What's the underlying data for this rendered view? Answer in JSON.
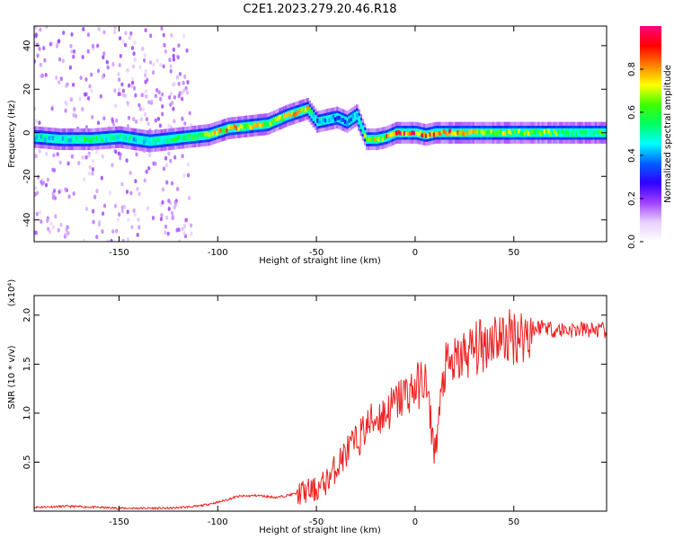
{
  "title": "C2E1.2023.279.20.46.R18",
  "colors": {
    "snr_line": "#ee2222",
    "frame": "#000000"
  },
  "chart_data": [
    {
      "type": "heatmap",
      "xlabel": "Height of straight line (km)",
      "ylabel": "Frequency (Hz)",
      "xlim": [
        -193,
        97
      ],
      "ylim": [
        -50,
        49
      ],
      "x_ticks": [
        -150,
        -100,
        -50,
        0,
        50
      ],
      "y_ticks": [
        -40,
        -20,
        0,
        20,
        40
      ],
      "colorbar": {
        "label": "Normalized spectral amplitude",
        "range": [
          0,
          1
        ],
        "ticks": [
          0.0,
          0.2,
          0.4,
          0.6,
          0.8
        ],
        "colormap": [
          "#ffffff",
          "#e8d0ff",
          "#a040ff",
          "#3000ff",
          "#0060ff",
          "#00ffff",
          "#00ff60",
          "#40ff00",
          "#ffff00",
          "#ff8000",
          "#ff0000",
          "#ff0080"
        ]
      },
      "trace": {
        "x": [
          -193,
          -180,
          -165,
          -150,
          -135,
          -125,
          -115,
          -105,
          -95,
          -85,
          -75,
          -65,
          -55,
          -50,
          -45,
          -40,
          -35,
          -30,
          -25,
          -20,
          -15,
          -10,
          -5,
          0,
          5,
          10,
          20,
          40,
          60,
          80,
          97
        ],
        "center_hz": [
          -2,
          -3,
          -3,
          -2,
          -4,
          -3,
          -2,
          -1,
          2,
          3,
          4,
          8,
          11,
          5,
          6,
          7,
          5,
          8,
          -3,
          -3,
          -2,
          0,
          0,
          0,
          -1,
          0,
          0,
          0,
          0,
          0,
          0
        ],
        "amplitude": [
          0.5,
          0.5,
          0.6,
          0.5,
          0.5,
          0.55,
          0.6,
          0.7,
          0.8,
          0.75,
          0.7,
          0.8,
          0.75,
          0.4,
          0.45,
          0.35,
          0.4,
          0.5,
          0.7,
          0.75,
          0.8,
          0.9,
          0.95,
          0.9,
          0.85,
          0.9,
          0.85,
          0.7,
          0.7,
          0.6,
          0.6
        ]
      }
    },
    {
      "type": "line",
      "xlabel": "Height of straight line (km)",
      "ylabel": "SNR (10 * v/v)",
      "y_scale_note": "(x10⁴)",
      "xlim": [
        -193,
        97
      ],
      "ylim": [
        0,
        2.2
      ],
      "x_ticks": [
        -150,
        -100,
        -50,
        0,
        50
      ],
      "y_ticks": [
        0.5,
        1.0,
        1.5,
        2.0
      ],
      "series": [
        {
          "x": [
            -193,
            -175,
            -150,
            -125,
            -110,
            -100,
            -90,
            -80,
            -70,
            -60,
            -50,
            -45,
            -40,
            -35,
            -30,
            -25,
            -20,
            -15,
            -10,
            -5,
            0,
            5,
            10,
            15,
            20,
            25,
            30,
            35,
            40,
            45,
            50,
            55,
            60,
            65,
            70,
            80,
            90,
            97
          ],
          "y": [
            0.04,
            0.05,
            0.03,
            0.03,
            0.05,
            0.09,
            0.15,
            0.16,
            0.14,
            0.18,
            0.22,
            0.3,
            0.45,
            0.6,
            0.7,
            0.85,
            0.95,
            1.0,
            1.1,
            1.2,
            1.25,
            1.35,
            0.6,
            1.45,
            1.5,
            1.6,
            1.65,
            1.7,
            1.8,
            1.75,
            1.8,
            1.8,
            1.85,
            1.9,
            1.85,
            1.85,
            1.85,
            1.84
          ]
        }
      ]
    }
  ]
}
